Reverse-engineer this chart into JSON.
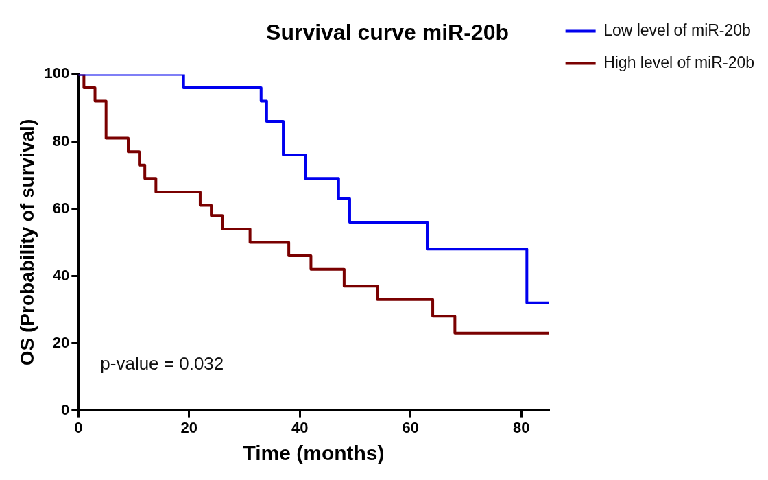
{
  "chart_data": {
    "type": "step",
    "title": "Survival curve miR-20b",
    "xlabel": "Time (months)",
    "ylabel": "OS (Probability of survival)",
    "xlim": [
      0,
      85
    ],
    "xticks": [
      0,
      20,
      40,
      60,
      80
    ],
    "ylim": [
      0,
      100
    ],
    "yticks": [
      0,
      20,
      40,
      60,
      80,
      100
    ],
    "grid": false,
    "legend": "right",
    "line_style": "solid",
    "annotations": [
      "p-value = 0.032"
    ],
    "series": [
      {
        "name": "Low level of miR-20b",
        "color": "#0000ee",
        "x": [
          0,
          19,
          33,
          34,
          37,
          41,
          47,
          49,
          63,
          81,
          85
        ],
        "values": [
          100,
          96,
          92,
          86,
          76,
          69,
          63,
          56,
          48,
          32,
          32
        ]
      },
      {
        "name": "High level of miR-20b",
        "color": "#7a0000",
        "x": [
          0,
          1,
          3,
          5,
          9,
          11,
          12,
          14,
          22,
          24,
          26,
          31,
          38,
          42,
          48,
          54,
          64,
          68,
          85
        ],
        "values": [
          100,
          96,
          92,
          81,
          77,
          73,
          69,
          65,
          61,
          58,
          54,
          50,
          46,
          42,
          37,
          33,
          28,
          23,
          23
        ]
      }
    ]
  }
}
